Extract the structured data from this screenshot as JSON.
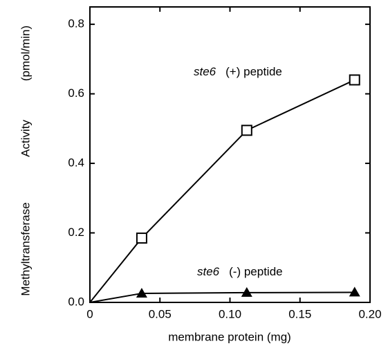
{
  "chart_data": {
    "type": "line",
    "x_label": "membrane protein (mg)",
    "y_label": [
      "Methyltransferase",
      "Activity",
      "(pmol/min)"
    ],
    "xlim": [
      0,
      0.2
    ],
    "ylim": [
      0,
      0.85
    ],
    "xticks": [
      {
        "value": 0,
        "label": "0"
      },
      0.05,
      {
        "value": 0.1,
        "label": "0.10"
      },
      0.15,
      {
        "value": 0.2,
        "label": "0.20"
      }
    ],
    "yticks": [
      {
        "value": 0,
        "label": "0.0"
      },
      0.2,
      0.4,
      0.6,
      0.8
    ],
    "series": [
      {
        "color": "#000000",
        "marker": "open-square",
        "x": [
          0,
          0.037,
          0.112,
          0.189
        ],
        "values": [
          0,
          0.185,
          0.495,
          0.64
        ]
      },
      {
        "color": "#000000",
        "marker": "filled-triangle",
        "x": [
          0,
          0.037,
          0.112,
          0.189
        ],
        "values": [
          0,
          0.026,
          0.028,
          0.029
        ]
      }
    ],
    "annotations": [
      {
        "gene": "ste6",
        "text": "(+) peptide"
      },
      {
        "gene": "ste6",
        "text": "(-) peptide"
      }
    ]
  }
}
